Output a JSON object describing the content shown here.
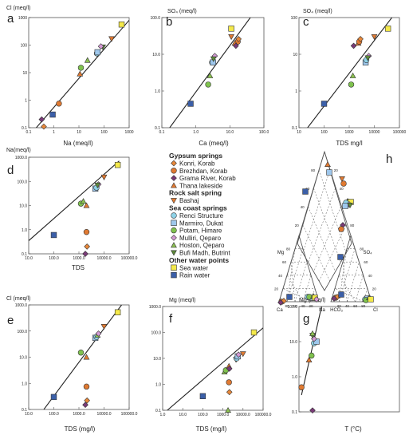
{
  "symbols": {
    "diamond_orange": {
      "shape": "diamond",
      "fill": "#E8883A"
    },
    "circle_orange": {
      "shape": "circle",
      "fill": "#E07A32"
    },
    "diamond_purple": {
      "shape": "diamond",
      "fill": "#7A3B78"
    },
    "tri_orange": {
      "shape": "triangle",
      "fill": "#E07A32"
    },
    "tri_down_orange": {
      "shape": "triangle-down",
      "fill": "#E07A32"
    },
    "circle_cyan": {
      "shape": "circle",
      "fill": "#8FD3E8"
    },
    "square_lightblue": {
      "shape": "square",
      "fill": "#9EC7EC"
    },
    "circle_green": {
      "shape": "circle",
      "fill": "#7FC24E"
    },
    "diamond_pink": {
      "shape": "diamond",
      "fill": "#D49AD4"
    },
    "tri_green": {
      "shape": "triangle",
      "fill": "#8CC152"
    },
    "tri_down_olive": {
      "shape": "triangle-down",
      "fill": "#5D8A3A"
    },
    "square_yellow": {
      "shape": "square",
      "fill": "#F4E94A"
    },
    "square_darkblue": {
      "shape": "square",
      "fill": "#3B5FA8"
    }
  },
  "legend": {
    "groups": [
      {
        "title": "Gypsum springs",
        "items": [
          {
            "label": "Konri, Korab",
            "symbol": "diamond_orange"
          },
          {
            "label": "Brezhdan, Korab",
            "symbol": "circle_orange"
          },
          {
            "label": "Grama River, Korab",
            "symbol": "diamond_purple"
          },
          {
            "label": "Thana lakeside",
            "symbol": "tri_orange"
          }
        ]
      },
      {
        "title": "Rock salt spring",
        "items": [
          {
            "label": "Bashaj",
            "symbol": "tri_down_orange"
          }
        ]
      },
      {
        "title": "Sea coast springs",
        "items": [
          {
            "label": "Renci Structure",
            "symbol": "circle_cyan"
          },
          {
            "label": "Marmiro, Dukat",
            "symbol": "square_lightblue"
          },
          {
            "label": "Potam, Himare",
            "symbol": "circle_green"
          },
          {
            "label": "Mulliri, Qeparo",
            "symbol": "diamond_pink"
          },
          {
            "label": "Hoston, Qeparo",
            "symbol": "tri_green"
          },
          {
            "label": "Bufi Madh, Butrint",
            "symbol": "tri_down_olive"
          }
        ]
      },
      {
        "title": "Other water points",
        "items": [
          {
            "label": "Sea water",
            "symbol": "square_yellow"
          },
          {
            "label": "Rain water",
            "symbol": "square_darkblue"
          }
        ]
      }
    ]
  },
  "chart_data": [
    {
      "type": "scatter",
      "panel": "a",
      "ylabel": "Cl (meq/l)",
      "xlabel": "Na (meq/l)",
      "xscale": "log",
      "yscale": "log",
      "xlim": [
        0.1,
        1000
      ],
      "ylim": [
        0.1,
        1000
      ],
      "xticks": [
        "0.1",
        "1",
        "10",
        "100",
        "1000"
      ],
      "yticks": [
        "0.1",
        "1",
        "10",
        "100",
        "1000"
      ],
      "line": [
        [
          0.2,
          0.1
        ],
        [
          1000,
          800
        ]
      ],
      "points": [
        {
          "symbol": "diamond_orange",
          "x": 0.4,
          "y": 0.11
        },
        {
          "symbol": "circle_orange",
          "x": 1.6,
          "y": 0.75
        },
        {
          "symbol": "diamond_purple",
          "x": 0.33,
          "y": 0.2
        },
        {
          "symbol": "square_darkblue",
          "x": 0.9,
          "y": 0.3
        },
        {
          "symbol": "tri_orange",
          "x": 11,
          "y": 9
        },
        {
          "symbol": "circle_green",
          "x": 12,
          "y": 15
        },
        {
          "symbol": "tri_green",
          "x": 22,
          "y": 28
        },
        {
          "symbol": "circle_cyan",
          "x": 52,
          "y": 50
        },
        {
          "symbol": "square_lightblue",
          "x": 55,
          "y": 55
        },
        {
          "symbol": "tri_down_olive",
          "x": 90,
          "y": 85
        },
        {
          "symbol": "diamond_pink",
          "x": 75,
          "y": 90
        },
        {
          "symbol": "tri_down_orange",
          "x": 200,
          "y": 170
        },
        {
          "symbol": "square_yellow",
          "x": 500,
          "y": 560
        }
      ]
    },
    {
      "type": "scatter",
      "panel": "b",
      "ylabel": "SO₄ (meq/l)",
      "xlabel": "Ca (meq/l)",
      "xscale": "log",
      "yscale": "log",
      "xlim": [
        0.1,
        100
      ],
      "ylim": [
        0.1,
        100
      ],
      "xticks": [
        "0.1",
        "1.0",
        "10.0",
        "100.0"
      ],
      "yticks": [
        "0.1",
        "1.0",
        "10.0",
        "100.0"
      ],
      "line": [
        [
          0.17,
          0.1
        ],
        [
          40,
          100
        ]
      ],
      "points": [
        {
          "symbol": "square_darkblue",
          "x": 0.7,
          "y": 0.45
        },
        {
          "symbol": "circle_green",
          "x": 2.3,
          "y": 1.5
        },
        {
          "symbol": "tri_green",
          "x": 2.6,
          "y": 2.6
        },
        {
          "symbol": "circle_cyan",
          "x": 3.0,
          "y": 6
        },
        {
          "symbol": "square_lightblue",
          "x": 3.2,
          "y": 6
        },
        {
          "symbol": "diamond_pink",
          "x": 3.6,
          "y": 9
        },
        {
          "symbol": "tri_down_olive",
          "x": 3.3,
          "y": 7.5
        },
        {
          "symbol": "square_yellow",
          "x": 11,
          "y": 50
        },
        {
          "symbol": "tri_down_orange",
          "x": 11,
          "y": 30
        },
        {
          "symbol": "circle_orange",
          "x": 17,
          "y": 22
        },
        {
          "symbol": "diamond_orange",
          "x": 18,
          "y": 26
        },
        {
          "symbol": "tri_orange",
          "x": 14,
          "y": 20
        },
        {
          "symbol": "diamond_purple",
          "x": 15,
          "y": 17
        }
      ]
    },
    {
      "type": "scatter",
      "panel": "c",
      "ylabel": "SO₄ (meq/l)",
      "xlabel": "TDS mg/l",
      "xscale": "log",
      "yscale": "log",
      "xlim": [
        10,
        100000
      ],
      "ylim": [
        0.1,
        100
      ],
      "xticks": [
        "10",
        "100",
        "1000",
        "10000",
        "100000"
      ],
      "yticks": [
        "0.1",
        "1",
        "10",
        "100"
      ],
      "line": [
        [
          22,
          0.1
        ],
        [
          50000,
          100
        ]
      ],
      "points": [
        {
          "symbol": "square_darkblue",
          "x": 100,
          "y": 0.45
        },
        {
          "symbol": "circle_green",
          "x": 1200,
          "y": 1.5
        },
        {
          "symbol": "tri_green",
          "x": 1400,
          "y": 2.6
        },
        {
          "symbol": "square_lightblue",
          "x": 4500,
          "y": 6
        },
        {
          "symbol": "circle_cyan",
          "x": 4800,
          "y": 7
        },
        {
          "symbol": "diamond_pink",
          "x": 6000,
          "y": 9
        },
        {
          "symbol": "tri_down_olive",
          "x": 5500,
          "y": 8
        },
        {
          "symbol": "diamond_purple",
          "x": 1500,
          "y": 17
        },
        {
          "symbol": "tri_orange",
          "x": 2300,
          "y": 20
        },
        {
          "symbol": "circle_orange",
          "x": 2500,
          "y": 22
        },
        {
          "symbol": "diamond_orange",
          "x": 2800,
          "y": 26
        },
        {
          "symbol": "tri_down_orange",
          "x": 10000,
          "y": 30
        },
        {
          "symbol": "square_yellow",
          "x": 35000,
          "y": 50
        }
      ]
    },
    {
      "type": "scatter",
      "panel": "d",
      "ylabel": "Na(meq/l)",
      "xlabel": "TDS",
      "xscale": "log",
      "yscale": "log",
      "xlim": [
        10,
        100000
      ],
      "ylim": [
        0.1,
        1000
      ],
      "xticks": [
        "10.0",
        "100.0",
        "1000.0",
        "10000.0",
        "100000.0"
      ],
      "yticks": [
        "0.1",
        "1.0",
        "10.0",
        "100.0",
        "1000.0"
      ],
      "line": [
        [
          10,
          0.35
        ],
        [
          40000,
          700
        ]
      ],
      "points": [
        {
          "symbol": "square_darkblue",
          "x": 100,
          "y": 0.6
        },
        {
          "symbol": "circle_green",
          "x": 1200,
          "y": 12
        },
        {
          "symbol": "tri_green",
          "x": 1500,
          "y": 15
        },
        {
          "symbol": "square_lightblue",
          "x": 4500,
          "y": 50
        },
        {
          "symbol": "circle_cyan",
          "x": 5000,
          "y": 55
        },
        {
          "symbol": "diamond_pink",
          "x": 6000,
          "y": 75
        },
        {
          "symbol": "tri_down_olive",
          "x": 5500,
          "y": 70
        },
        {
          "symbol": "tri_down_orange",
          "x": 10000,
          "y": 150
        },
        {
          "symbol": "square_yellow",
          "x": 35000,
          "y": 480
        },
        {
          "symbol": "tri_orange",
          "x": 2000,
          "y": 10
        },
        {
          "symbol": "circle_orange",
          "x": 2000,
          "y": 0.8
        },
        {
          "symbol": "diamond_orange",
          "x": 2100,
          "y": 0.2
        },
        {
          "symbol": "diamond_purple",
          "x": 1800,
          "y": 0.1
        }
      ]
    },
    {
      "type": "ternary",
      "panel": "h",
      "labels": {
        "mg": "Mg",
        "so4": "SO₄",
        "ca": "Ca",
        "na": "Na",
        "hco3": "HCO₃",
        "cl": "Cl"
      },
      "ticks": [
        "20",
        "40",
        "60",
        "80"
      ],
      "diamond_ticks": [
        "20",
        "40",
        "60",
        "80"
      ]
    },
    {
      "type": "scatter",
      "panel": "e",
      "ylabel": "Cl (meq/l)",
      "xlabel": "TDS (mg/l)",
      "xscale": "log",
      "yscale": "log",
      "xlim": [
        10,
        100000
      ],
      "ylim": [
        0.1,
        1000
      ],
      "xticks": [
        "10.0",
        "100.0",
        "1000.0",
        "10000.0",
        "100000.0"
      ],
      "yticks": [
        "0.1",
        "1.0",
        "10.0",
        "100.0",
        "1000.0"
      ],
      "line": [
        [
          40,
          0.1
        ],
        [
          50000,
          1000
        ]
      ],
      "points": [
        {
          "symbol": "square_darkblue",
          "x": 100,
          "y": 0.3
        },
        {
          "symbol": "circle_green",
          "x": 1200,
          "y": 15
        },
        {
          "symbol": "tri_orange",
          "x": 2000,
          "y": 10
        },
        {
          "symbol": "square_lightblue",
          "x": 4500,
          "y": 55
        },
        {
          "symbol": "circle_cyan",
          "x": 5000,
          "y": 60
        },
        {
          "symbol": "tri_green",
          "x": 5500,
          "y": 70
        },
        {
          "symbol": "diamond_pink",
          "x": 6000,
          "y": 80
        },
        {
          "symbol": "tri_down_orange",
          "x": 10000,
          "y": 150
        },
        {
          "symbol": "square_yellow",
          "x": 35000,
          "y": 520
        },
        {
          "symbol": "circle_orange",
          "x": 2000,
          "y": 0.75
        },
        {
          "symbol": "diamond_orange",
          "x": 2100,
          "y": 0.22
        },
        {
          "symbol": "diamond_purple",
          "x": 1800,
          "y": 0.15
        }
      ]
    },
    {
      "type": "scatter",
      "panel": "f",
      "ylabel": "Mg (meq/l)",
      "xlabel": "TDS (mg/l)",
      "xscale": "log",
      "yscale": "log",
      "xlim": [
        1,
        100000
      ],
      "ylim": [
        0.1,
        1000
      ],
      "xticks": [
        "1.0",
        "10.0",
        "100.0",
        "1000.0",
        "10000.0",
        "100000.0"
      ],
      "yticks": [
        "0.1",
        "1.0",
        "10.0",
        "100.0",
        "1000.0"
      ],
      "line": [
        [
          1,
          0.07
        ],
        [
          100000,
          150
        ]
      ],
      "points": [
        {
          "symbol": "square_darkblue",
          "x": 100,
          "y": 0.35
        },
        {
          "symbol": "tri_green",
          "x": 1200,
          "y": 3
        },
        {
          "symbol": "circle_green",
          "x": 1400,
          "y": 3.5
        },
        {
          "symbol": "tri_orange",
          "x": 2000,
          "y": 5
        },
        {
          "symbol": "diamond_purple",
          "x": 2100,
          "y": 4
        },
        {
          "symbol": "tri_down_olive",
          "x": 4500,
          "y": 9
        },
        {
          "symbol": "circle_cyan",
          "x": 4800,
          "y": 10
        },
        {
          "symbol": "square_lightblue",
          "x": 5500,
          "y": 12
        },
        {
          "symbol": "diamond_pink",
          "x": 6000,
          "y": 14
        },
        {
          "symbol": "tri_down_orange",
          "x": 10000,
          "y": 15
        },
        {
          "symbol": "square_yellow",
          "x": 35000,
          "y": 100
        },
        {
          "symbol": "circle_orange",
          "x": 2000,
          "y": 1.2
        },
        {
          "symbol": "diamond_orange",
          "x": 2100,
          "y": 0.5
        },
        {
          "symbol": "tri_green",
          "x": 1800,
          "y": 0.1
        }
      ]
    },
    {
      "type": "scatter",
      "panel": "g",
      "ylabel": "Mg (meq/l)",
      "xlabel": "T (°C)",
      "xscale": "linear",
      "yscale": "log",
      "xlim": [
        10,
        30
      ],
      "ylim": [
        0.1,
        100
      ],
      "xticks": [],
      "yticks": [
        "0.1",
        "1.0",
        "10.0",
        "100.0"
      ],
      "line": [
        [
          10.5,
          0.3
        ],
        [
          14.5,
          100
        ]
      ],
      "points": [
        {
          "symbol": "circle_orange",
          "x": 10.5,
          "y": 0.5
        },
        {
          "symbol": "tri_orange",
          "x": 12,
          "y": 3
        },
        {
          "symbol": "circle_green",
          "x": 12.5,
          "y": 4
        },
        {
          "symbol": "circle_cyan",
          "x": 13,
          "y": 9
        },
        {
          "symbol": "square_lightblue",
          "x": 13.5,
          "y": 10
        },
        {
          "symbol": "diamond_pink",
          "x": 13,
          "y": 12
        },
        {
          "symbol": "tri_down_olive",
          "x": 12.7,
          "y": 15
        },
        {
          "symbol": "tri_green",
          "x": 12.7,
          "y": 17
        },
        {
          "symbol": "diamond_purple",
          "x": 12.7,
          "y": 0.11
        }
      ]
    }
  ]
}
